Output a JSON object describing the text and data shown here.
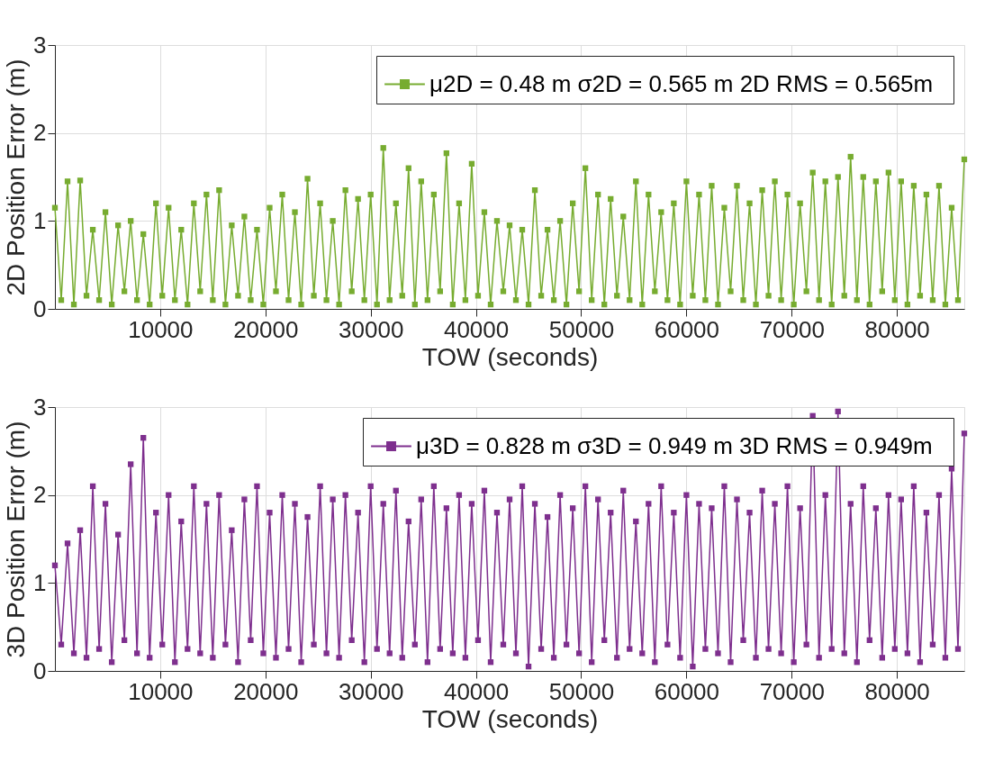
{
  "chart_data": [
    {
      "type": "line",
      "xlabel": "TOW (seconds)",
      "ylabel": "2D Position Error (m)",
      "xlim": [
        0,
        86400
      ],
      "ylim": [
        0,
        3
      ],
      "xticks": [
        10000,
        20000,
        30000,
        40000,
        50000,
        60000,
        70000,
        80000
      ],
      "yticks": [
        0,
        1,
        2,
        3
      ],
      "grid": true,
      "legend": "top right",
      "marker": "square",
      "x": [
        0,
        600,
        1200,
        1800,
        2400,
        3000,
        3600,
        4200,
        4800,
        5400,
        6000,
        6600,
        7200,
        7800,
        8400,
        9000,
        9600,
        10200,
        10800,
        11400,
        12000,
        12600,
        13200,
        13800,
        14400,
        15000,
        15600,
        16200,
        16800,
        17400,
        18000,
        18600,
        19200,
        19800,
        20400,
        21000,
        21600,
        22200,
        22800,
        23400,
        24000,
        24600,
        25200,
        25800,
        26400,
        27000,
        27600,
        28200,
        28800,
        29400,
        30000,
        30600,
        31200,
        31800,
        32400,
        33000,
        33600,
        34200,
        34800,
        35400,
        36000,
        36600,
        37200,
        37800,
        38400,
        39000,
        39600,
        40200,
        40800,
        41400,
        42000,
        42600,
        43200,
        43800,
        44400,
        45000,
        45600,
        46200,
        46800,
        47400,
        48000,
        48600,
        49200,
        49800,
        50400,
        51000,
        51600,
        52200,
        52800,
        53400,
        54000,
        54600,
        55200,
        55800,
        56400,
        57000,
        57600,
        58200,
        58800,
        59400,
        60000,
        60600,
        61200,
        61800,
        62400,
        63000,
        63600,
        64200,
        64800,
        65400,
        66000,
        66600,
        67200,
        67800,
        68400,
        69000,
        69600,
        70200,
        70800,
        71400,
        72000,
        72600,
        73200,
        73800,
        74400,
        75000,
        75600,
        76200,
        76800,
        77400,
        78000,
        78600,
        79200,
        79800,
        80400,
        81000,
        81600,
        82200,
        82800,
        83400,
        84000,
        84600,
        85200,
        85800,
        86400
      ],
      "series": [
        {
          "name": "μ2D = 0.48 m  σ2D = 0.565 m  2D RMS = 0.565m",
          "color": "#77ac30",
          "values": [
            1.15,
            0.1,
            1.45,
            0.05,
            1.46,
            0.15,
            0.9,
            0.1,
            1.1,
            0.05,
            0.95,
            0.2,
            1.0,
            0.1,
            0.85,
            0.05,
            1.2,
            0.15,
            1.15,
            0.1,
            0.9,
            0.05,
            1.2,
            0.2,
            1.3,
            0.1,
            1.35,
            0.05,
            0.95,
            0.15,
            1.05,
            0.1,
            0.9,
            0.05,
            1.15,
            0.2,
            1.3,
            0.1,
            1.1,
            0.05,
            1.48,
            0.15,
            1.2,
            0.1,
            1.0,
            0.05,
            1.35,
            0.2,
            1.25,
            0.1,
            1.3,
            0.05,
            1.83,
            0.1,
            1.2,
            0.15,
            1.6,
            0.05,
            1.45,
            0.1,
            1.3,
            0.2,
            1.77,
            0.05,
            1.2,
            0.1,
            1.65,
            0.15,
            1.1,
            0.05,
            1.0,
            0.2,
            0.95,
            0.1,
            0.9,
            0.05,
            1.35,
            0.15,
            0.9,
            0.1,
            1.0,
            0.05,
            1.2,
            0.2,
            1.6,
            0.1,
            1.3,
            0.05,
            1.25,
            0.15,
            1.05,
            0.1,
            1.45,
            0.05,
            1.3,
            0.2,
            1.1,
            0.1,
            1.2,
            0.05,
            1.45,
            0.15,
            1.3,
            0.1,
            1.4,
            0.05,
            1.15,
            0.2,
            1.4,
            0.1,
            1.2,
            0.05,
            1.35,
            0.15,
            1.45,
            0.1,
            1.3,
            0.05,
            1.2,
            0.2,
            1.55,
            0.1,
            1.45,
            0.05,
            1.5,
            0.15,
            1.73,
            0.1,
            1.5,
            0.05,
            1.45,
            0.2,
            1.55,
            0.1,
            1.45,
            0.05,
            1.4,
            0.15,
            1.3,
            0.1,
            1.4,
            0.05,
            1.15,
            0.1,
            1.7
          ]
        }
      ]
    },
    {
      "type": "line",
      "xlabel": "TOW (seconds)",
      "ylabel": "3D Position Error (m)",
      "xlim": [
        0,
        86400
      ],
      "ylim": [
        0,
        3
      ],
      "xticks": [
        10000,
        20000,
        30000,
        40000,
        50000,
        60000,
        70000,
        80000
      ],
      "yticks": [
        0,
        1,
        2,
        3
      ],
      "grid": true,
      "legend": "top right",
      "marker": "square",
      "x": [
        0,
        600,
        1200,
        1800,
        2400,
        3000,
        3600,
        4200,
        4800,
        5400,
        6000,
        6600,
        7200,
        7800,
        8400,
        9000,
        9600,
        10200,
        10800,
        11400,
        12000,
        12600,
        13200,
        13800,
        14400,
        15000,
        15600,
        16200,
        16800,
        17400,
        18000,
        18600,
        19200,
        19800,
        20400,
        21000,
        21600,
        22200,
        22800,
        23400,
        24000,
        24600,
        25200,
        25800,
        26400,
        27000,
        27600,
        28200,
        28800,
        29400,
        30000,
        30600,
        31200,
        31800,
        32400,
        33000,
        33600,
        34200,
        34800,
        35400,
        36000,
        36600,
        37200,
        37800,
        38400,
        39000,
        39600,
        40200,
        40800,
        41400,
        42000,
        42600,
        43200,
        43800,
        44400,
        45000,
        45600,
        46200,
        46800,
        47400,
        48000,
        48600,
        49200,
        49800,
        50400,
        51000,
        51600,
        52200,
        52800,
        53400,
        54000,
        54600,
        55200,
        55800,
        56400,
        57000,
        57600,
        58200,
        58800,
        59400,
        60000,
        60600,
        61200,
        61800,
        62400,
        63000,
        63600,
        64200,
        64800,
        65400,
        66000,
        66600,
        67200,
        67800,
        68400,
        69000,
        69600,
        70200,
        70800,
        71400,
        72000,
        72600,
        73200,
        73800,
        74400,
        75000,
        75600,
        76200,
        76800,
        77400,
        78000,
        78600,
        79200,
        79800,
        80400,
        81000,
        81600,
        82200,
        82800,
        83400,
        84000,
        84600,
        85200,
        85800,
        86400
      ],
      "series": [
        {
          "name": "μ3D = 0.828 m  σ3D = 0.949 m  3D RMS = 0.949m",
          "color": "#7e2f8e",
          "values": [
            1.2,
            0.3,
            1.45,
            0.2,
            1.6,
            0.15,
            2.1,
            0.25,
            1.9,
            0.1,
            1.55,
            0.35,
            2.35,
            0.2,
            2.65,
            0.15,
            1.8,
            0.3,
            2.0,
            0.1,
            1.7,
            0.25,
            2.1,
            0.2,
            1.9,
            0.15,
            2.0,
            0.3,
            1.6,
            0.1,
            1.95,
            0.35,
            2.1,
            0.2,
            1.8,
            0.15,
            2.0,
            0.25,
            1.9,
            0.1,
            1.75,
            0.3,
            2.1,
            0.2,
            1.95,
            0.15,
            2.0,
            0.35,
            1.8,
            0.1,
            2.1,
            0.25,
            1.9,
            0.2,
            2.05,
            0.15,
            1.7,
            0.3,
            1.95,
            0.1,
            2.1,
            0.25,
            1.85,
            0.2,
            2.0,
            0.15,
            1.9,
            0.35,
            2.05,
            0.1,
            1.8,
            0.3,
            1.95,
            0.2,
            2.1,
            0.05,
            1.9,
            0.25,
            1.75,
            0.15,
            2.0,
            0.3,
            1.85,
            0.2,
            2.1,
            0.1,
            1.95,
            0.35,
            1.8,
            0.15,
            2.05,
            0.25,
            1.7,
            0.2,
            1.9,
            0.1,
            2.1,
            0.3,
            1.8,
            0.15,
            2.0,
            0.05,
            1.9,
            0.25,
            1.85,
            0.2,
            2.1,
            0.1,
            1.95,
            0.35,
            1.8,
            0.15,
            2.05,
            0.25,
            1.9,
            0.2,
            2.1,
            0.1,
            1.85,
            0.3,
            2.9,
            0.15,
            2.0,
            0.25,
            2.95,
            0.2,
            1.9,
            0.1,
            2.1,
            0.35,
            1.85,
            0.15,
            2.0,
            0.25,
            1.95,
            0.2,
            2.1,
            0.1,
            1.8,
            0.3,
            2.0,
            0.15,
            2.3,
            0.25,
            2.7
          ]
        }
      ]
    }
  ]
}
